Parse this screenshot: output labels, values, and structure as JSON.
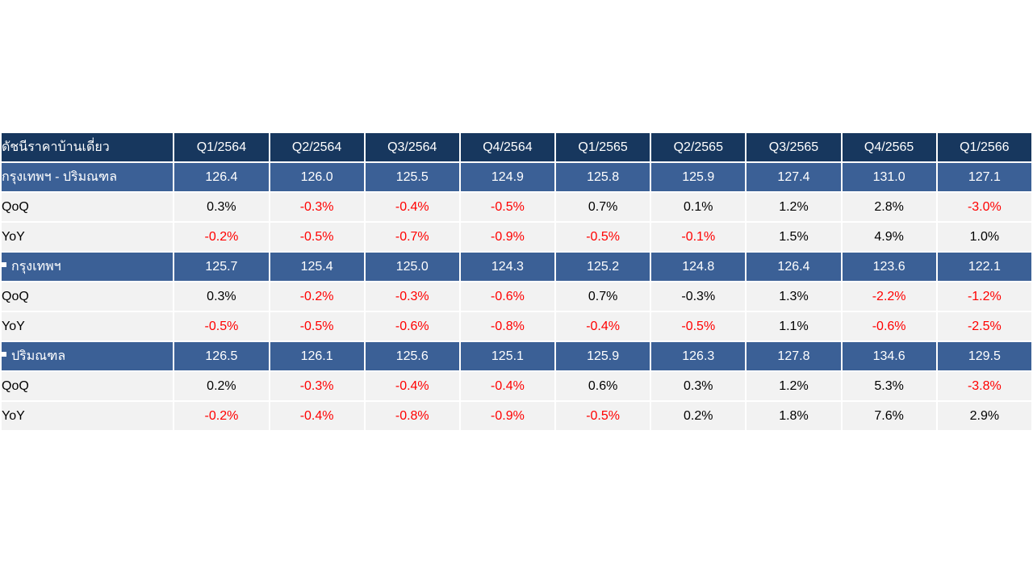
{
  "table": {
    "header": {
      "label": "ดัชนีราคาบ้านเดี่ยว",
      "quarters": [
        "Q1/2564",
        "Q2/2564",
        "Q3/2564",
        "Q4/2564",
        "Q1/2565",
        "Q2/2565",
        "Q3/2565",
        "Q4/2565",
        "Q1/2566"
      ]
    },
    "groups": [
      {
        "label": "กรุงเทพฯ - ปริมณฑล",
        "bullet": false,
        "values": [
          "126.4",
          "126.0",
          "125.5",
          "124.9",
          "125.8",
          "125.9",
          "127.4",
          "131.0",
          "127.1"
        ],
        "rows": [
          {
            "label": "QoQ",
            "values": [
              "0.3%",
              "-0.3%",
              "-0.4%",
              "-0.5%",
              "0.7%",
              "0.1%",
              "1.2%",
              "2.8%",
              "-3.0%"
            ]
          },
          {
            "label": "YoY",
            "values": [
              "-0.2%",
              "-0.5%",
              "-0.7%",
              "-0.9%",
              "-0.5%",
              "-0.1%",
              "1.5%",
              "4.9%",
              "1.0%"
            ]
          }
        ]
      },
      {
        "label": "กรุงเทพฯ",
        "bullet": true,
        "values": [
          "125.7",
          "125.4",
          "125.0",
          "124.3",
          "125.2",
          "124.8",
          "126.4",
          "123.6",
          "122.1"
        ],
        "rows": [
          {
            "label": "QoQ",
            "values": [
              "0.3%",
              "-0.2%",
              "-0.3%",
              "-0.6%",
              "0.7%",
              "-0.3%",
              "1.3%",
              "-2.2%",
              "-1.2%"
            ]
          },
          {
            "label": "YoY",
            "values": [
              "-0.5%",
              "-0.5%",
              "-0.6%",
              "-0.8%",
              "-0.4%",
              "-0.5%",
              "1.1%",
              "-0.6%",
              "-2.5%"
            ]
          }
        ]
      },
      {
        "label": "ปริมณฑล",
        "bullet": true,
        "values": [
          "126.5",
          "126.1",
          "125.6",
          "125.1",
          "125.9",
          "126.3",
          "127.8",
          "134.6",
          "129.5"
        ],
        "rows": [
          {
            "label": "QoQ",
            "values": [
              "0.2%",
              "-0.3%",
              "-0.4%",
              "-0.4%",
              "0.6%",
              "0.3%",
              "1.2%",
              "5.3%",
              "-3.8%"
            ]
          },
          {
            "label": "YoY",
            "values": [
              "-0.2%",
              "-0.4%",
              "-0.8%",
              "-0.9%",
              "-0.5%",
              "0.2%",
              "1.8%",
              "7.6%",
              "2.9%"
            ]
          }
        ]
      }
    ],
    "colors": {
      "header_bg": "#17375e",
      "group_bg": "#3b6096",
      "sub_bg": "#f2f2f2",
      "negative_text": "#ff0000"
    }
  },
  "neg_cells": [
    "0.1.1",
    "0.1.2",
    "0.1.3",
    "0.1.8",
    "0.2.0",
    "0.2.1",
    "0.2.2",
    "0.2.3",
    "0.2.4",
    "0.2.5",
    "1.1.1",
    "1.1.2",
    "1.1.3",
    "1.1.7",
    "1.1.8",
    "1.2.0",
    "1.2.1",
    "1.2.2",
    "1.2.3",
    "1.2.4",
    "1.2.5",
    "1.2.7",
    "1.2.8",
    "2.1.1",
    "2.1.2",
    "2.1.3",
    "2.1.8",
    "2.2.0",
    "2.2.1",
    "2.2.2",
    "2.2.3",
    "2.2.4"
  ]
}
